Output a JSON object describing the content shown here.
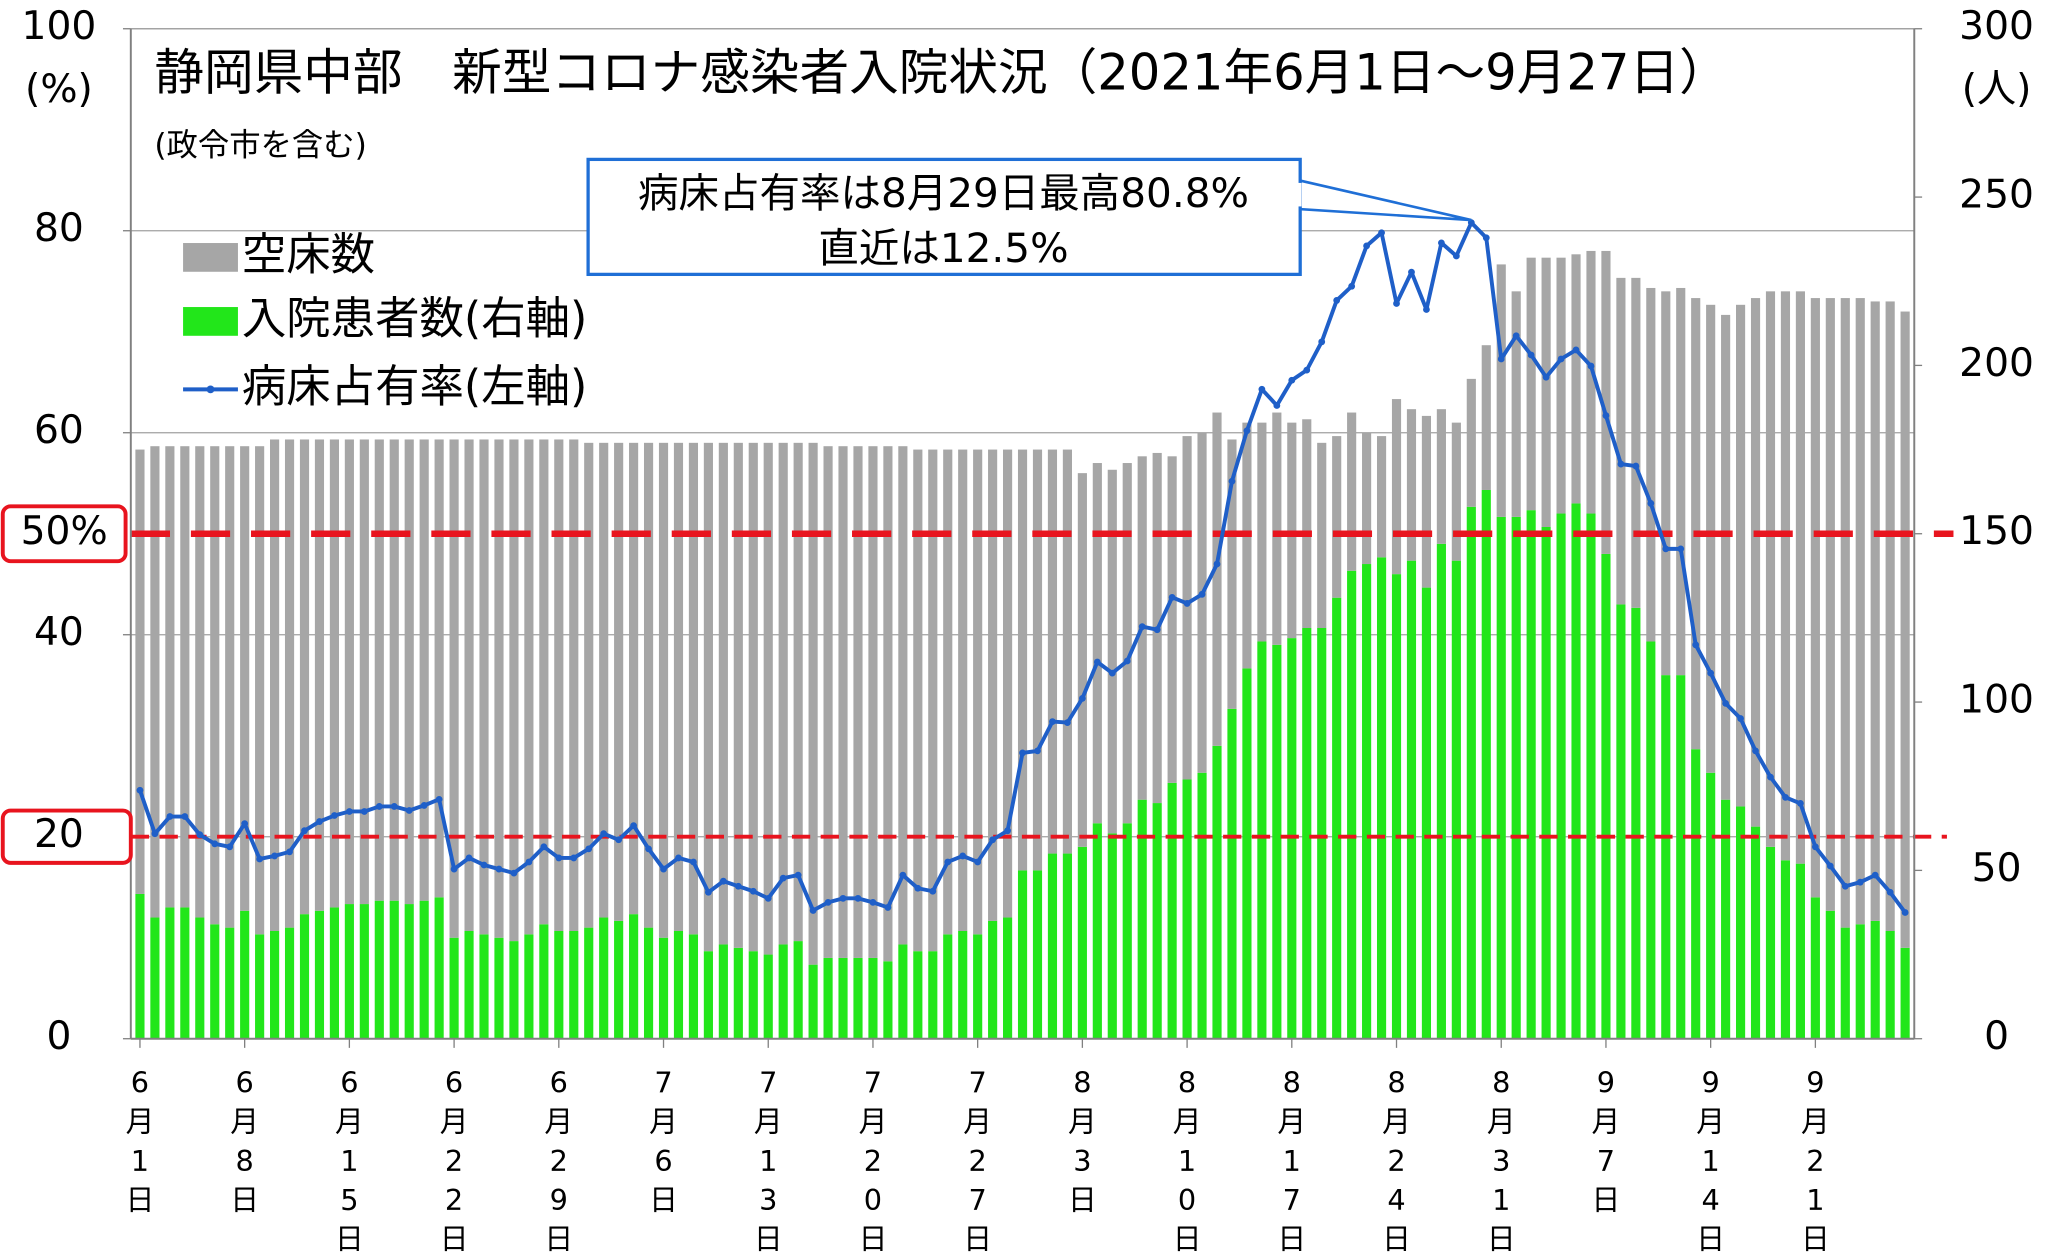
{
  "chart_data": {
    "type": "bar",
    "title": "静岡県中部　新型コロナ感染者入院状況（2021年6月1日～9月27日）",
    "subtitle": "(政令市を含む)",
    "ylabel": "(%)",
    "y2label": "(人)",
    "categories": [
      "6月1日",
      null,
      null,
      null,
      null,
      null,
      null,
      "6月8日",
      null,
      null,
      null,
      null,
      null,
      null,
      "6月15日",
      null,
      null,
      null,
      null,
      null,
      null,
      "6月22日",
      null,
      null,
      null,
      null,
      null,
      null,
      "6月29日",
      null,
      null,
      null,
      null,
      null,
      null,
      "7月6日",
      null,
      null,
      null,
      null,
      null,
      null,
      "7月13日",
      null,
      null,
      null,
      null,
      null,
      null,
      "7月20日",
      null,
      null,
      null,
      null,
      null,
      null,
      "7月27日",
      null,
      null,
      null,
      null,
      null,
      null,
      "8月3日",
      null,
      null,
      null,
      null,
      null,
      null,
      "8月10日",
      null,
      null,
      null,
      null,
      null,
      null,
      "8月17日",
      null,
      null,
      null,
      null,
      null,
      null,
      "8月24日",
      null,
      null,
      null,
      null,
      null,
      null,
      "8月31日",
      null,
      null,
      null,
      null,
      null,
      null,
      "9月7日",
      null,
      null,
      null,
      null,
      null,
      null,
      "9月14日",
      null,
      null,
      null,
      null,
      null,
      null,
      "9月21日",
      null,
      null,
      null,
      null,
      null,
      null
    ],
    "stacked": true,
    "series": [
      {
        "name": "空床数",
        "type": "bar",
        "axis": "y2",
        "color": "#a6a6a6",
        "values": [
          132,
          140,
          137,
          137,
          140,
          142,
          143,
          138,
          145,
          146,
          145,
          141,
          140,
          139,
          138,
          138,
          137,
          137,
          138,
          137,
          136,
          148,
          146,
          147,
          148,
          149,
          147,
          144,
          146,
          146,
          144,
          141,
          142,
          140,
          144,
          147,
          145,
          146,
          151,
          149,
          150,
          151,
          152,
          149,
          148,
          155,
          152,
          152,
          152,
          152,
          153,
          148,
          149,
          149,
          144,
          143,
          144,
          140,
          139,
          125,
          125,
          120,
          120,
          111,
          107,
          108,
          107,
          102,
          104,
          97,
          102,
          101,
          99,
          80,
          73,
          65,
          69,
          64,
          62,
          55,
          48,
          47,
          39,
          36,
          52,
          45,
          51,
          40,
          41,
          38,
          43,
          75,
          67,
          75,
          80,
          76,
          74,
          78,
          90,
          97,
          98,
          105,
          114,
          115,
          134,
          139,
          144,
          149,
          157,
          165,
          169,
          170,
          178,
          182,
          187,
          186,
          184,
          187,
          189
        ]
      },
      {
        "name": "入院患者数(右軸)",
        "type": "bar",
        "axis": "y2",
        "color": "#22e61a",
        "values": [
          43,
          36,
          39,
          39,
          36,
          34,
          33,
          38,
          31,
          32,
          33,
          37,
          38,
          39,
          40,
          40,
          41,
          41,
          40,
          41,
          42,
          30,
          32,
          31,
          30,
          29,
          31,
          34,
          32,
          32,
          33,
          36,
          35,
          37,
          33,
          30,
          32,
          31,
          26,
          28,
          27,
          26,
          25,
          28,
          29,
          22,
          24,
          24,
          24,
          24,
          23,
          28,
          26,
          26,
          31,
          32,
          31,
          35,
          36,
          50,
          50,
          55,
          55,
          57,
          64,
          61,
          64,
          71,
          70,
          76,
          77,
          79,
          87,
          98,
          110,
          118,
          117,
          119,
          122,
          122,
          131,
          139,
          141,
          143,
          138,
          142,
          134,
          147,
          142,
          158,
          163,
          155,
          155,
          157,
          152,
          156,
          159,
          156,
          144,
          129,
          128,
          118,
          108,
          108,
          86,
          79,
          71,
          69,
          63,
          57,
          53,
          52,
          42,
          38,
          33,
          34,
          35,
          32,
          27
        ]
      },
      {
        "name": "病床占有率(左軸)",
        "type": "line",
        "axis": "y",
        "color": "#1f5fc8",
        "values": [
          24.6,
          20.3,
          22.0,
          22.0,
          20.2,
          19.3,
          19.0,
          21.3,
          17.8,
          18.1,
          18.5,
          20.6,
          21.5,
          22.1,
          22.5,
          22.5,
          23.0,
          23.0,
          22.6,
          23.1,
          23.7,
          16.8,
          17.9,
          17.2,
          16.8,
          16.4,
          17.5,
          19.0,
          17.9,
          17.9,
          18.8,
          20.3,
          19.7,
          21.1,
          18.8,
          16.8,
          17.9,
          17.5,
          14.5,
          15.6,
          15.1,
          14.6,
          13.9,
          15.9,
          16.2,
          12.7,
          13.5,
          13.9,
          13.9,
          13.5,
          13.0,
          16.2,
          14.9,
          14.6,
          17.5,
          18.1,
          17.5,
          19.7,
          20.6,
          28.3,
          28.5,
          31.4,
          31.3,
          33.7,
          37.3,
          36.2,
          37.4,
          40.8,
          40.5,
          43.7,
          43.1,
          44.0,
          47.0,
          55.2,
          60.2,
          64.3,
          62.7,
          65.2,
          66.2,
          69.0,
          73.1,
          74.5,
          78.5,
          79.8,
          72.8,
          75.9,
          72.2,
          78.8,
          77.5,
          80.8,
          79.3,
          67.3,
          69.6,
          67.7,
          65.5,
          67.3,
          68.2,
          66.6,
          61.7,
          56.9,
          56.7,
          53.0,
          48.5,
          48.5,
          39.0,
          36.2,
          33.2,
          31.7,
          28.5,
          25.9,
          23.9,
          23.3,
          19.0,
          17.1,
          15.1,
          15.5,
          16.2,
          14.5,
          12.5
        ]
      }
    ],
    "ylim": [
      0,
      100
    ],
    "yticks": [
      0,
      20,
      40,
      60,
      80,
      100
    ],
    "y2lim": [
      0,
      300
    ],
    "y2ticks": [
      0,
      50,
      100,
      150,
      200,
      250,
      300
    ],
    "grid": true,
    "legend": "upper left",
    "reference_lines": [
      {
        "value": 50,
        "label": "50%",
        "color": "#e8141e"
      },
      {
        "value": 20,
        "color": "#e8141e"
      }
    ],
    "annotation": {
      "lines": [
        "病床占有率は8月29日最高80.8%",
        "直近は12.5%"
      ],
      "color": "#1f6fd6"
    }
  }
}
